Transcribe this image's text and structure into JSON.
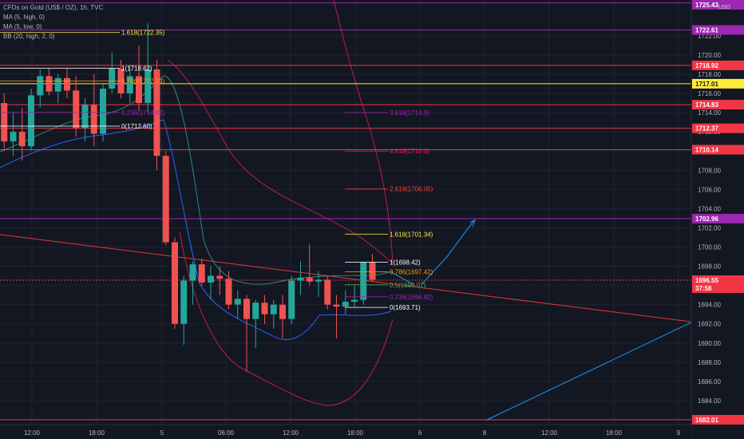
{
  "legend": {
    "title": "CFDs on Gold (US$ / OZ), 1h, TVC",
    "ma_high": "MA (5, high, 0)",
    "ma_low": "MA (5, low, 0)",
    "bb": "BB (20, high, 2, 0)"
  },
  "currency": "USD",
  "countdown": "37:58",
  "colors": {
    "background": "#131722",
    "up": "#26a69a",
    "down": "#ef5350",
    "horizontal_level": "#f23645",
    "purple_level": "#9c27b0",
    "yellow_level": "#ffeb3b",
    "ma_high": "#2a8c84",
    "ma_low": "#2962ff",
    "bollinger": "#c2185b",
    "projection": "#2196f3",
    "trendline": "#e53935"
  },
  "chart_data": {
    "type": "candlestick",
    "symbol": "XAUUSD",
    "timeframe": "1h",
    "ylim": [
      1681.5,
      1725.4
    ],
    "y_ticks": [
      1684,
      1686,
      1688,
      1690,
      1692,
      1694,
      1696,
      1698,
      1700,
      1702,
      1704,
      1706,
      1708,
      1710,
      1712,
      1714,
      1716,
      1718,
      1720,
      1722
    ],
    "x_tick_labels": [
      "12:00",
      "18:00",
      "5",
      "06:00",
      "12:00",
      "18:00",
      "6",
      "8",
      "12:00",
      "18:00",
      "9"
    ],
    "candles": [
      [
        1713.2,
        1716.1,
        1710.0,
        1715.0
      ],
      [
        1715.0,
        1716.0,
        1710.0,
        1711.0
      ],
      [
        1711.0,
        1714.0,
        1709.5,
        1712.0
      ],
      [
        1712.0,
        1714.5,
        1709.0,
        1710.5
      ],
      [
        1710.5,
        1716.5,
        1710.0,
        1715.8
      ],
      [
        1715.8,
        1718.5,
        1714.5,
        1717.8
      ],
      [
        1717.8,
        1718.6,
        1715.8,
        1716.2
      ],
      [
        1716.2,
        1718.0,
        1715.0,
        1717.6
      ],
      [
        1717.6,
        1718.6,
        1715.5,
        1716.3
      ],
      [
        1716.3,
        1717.8,
        1711.5,
        1712.4
      ],
      [
        1712.4,
        1715.5,
        1711.0,
        1714.8
      ],
      [
        1714.8,
        1718.0,
        1710.5,
        1711.8
      ],
      [
        1711.8,
        1717.0,
        1711.0,
        1716.5
      ],
      [
        1716.5,
        1720.3,
        1716.0,
        1718.6
      ],
      [
        1718.6,
        1719.5,
        1715.5,
        1716.0
      ],
      [
        1716.0,
        1719.0,
        1715.0,
        1717.8
      ],
      [
        1717.8,
        1721.0,
        1714.2,
        1715.0
      ],
      [
        1715.0,
        1723.3,
        1714.0,
        1718.5
      ],
      [
        1718.5,
        1719.5,
        1708.0,
        1709.5
      ],
      [
        1709.5,
        1710.0,
        1700.2,
        1700.5
      ],
      [
        1700.5,
        1701.0,
        1691.5,
        1692.0
      ],
      [
        1692.0,
        1697.0,
        1689.8,
        1696.5
      ],
      [
        1696.5,
        1698.5,
        1694.0,
        1698.2
      ],
      [
        1698.2,
        1698.8,
        1696.0,
        1696.3
      ],
      [
        1696.3,
        1698.0,
        1694.5,
        1697.0
      ],
      [
        1697.0,
        1698.0,
        1695.0,
        1696.7
      ],
      [
        1696.7,
        1697.5,
        1693.5,
        1694.0
      ],
      [
        1694.0,
        1695.5,
        1692.5,
        1694.6
      ],
      [
        1694.6,
        1695.0,
        1687.0,
        1692.5
      ],
      [
        1692.5,
        1694.5,
        1689.5,
        1694.2
      ],
      [
        1694.2,
        1695.0,
        1692.0,
        1693.0
      ],
      [
        1693.0,
        1694.5,
        1691.5,
        1694.0
      ],
      [
        1694.0,
        1695.0,
        1690.5,
        1692.5
      ],
      [
        1692.5,
        1697.0,
        1692.0,
        1696.5
      ],
      [
        1696.5,
        1698.5,
        1695.0,
        1696.8
      ],
      [
        1696.8,
        1700.3,
        1696.0,
        1696.4
      ],
      [
        1696.4,
        1697.5,
        1694.8,
        1696.6
      ],
      [
        1696.6,
        1697.0,
        1693.5,
        1694.0
      ],
      [
        1694.0,
        1695.0,
        1690.5,
        1693.8
      ],
      [
        1693.8,
        1695.5,
        1693.0,
        1694.3
      ],
      [
        1694.3,
        1696.0,
        1693.8,
        1694.5
      ],
      [
        1694.5,
        1698.5,
        1694.0,
        1698.4
      ],
      [
        1698.4,
        1699.3,
        1696.4,
        1696.6
      ]
    ],
    "horizontal_levels": [
      {
        "label": "1725.43",
        "color": "purple"
      },
      {
        "label": "1722.61",
        "color": "purple"
      },
      {
        "label": "1718.92",
        "color": "red"
      },
      {
        "label": "1717.01",
        "color": "yellow"
      },
      {
        "label": "1714.83",
        "color": "red"
      },
      {
        "label": "1712.37",
        "color": "red"
      },
      {
        "label": "1710.14",
        "color": "red"
      },
      {
        "label": "1702.96",
        "color": "purple"
      },
      {
        "label": "1696.55",
        "color": "red",
        "current_price": true
      },
      {
        "label": "1682.01",
        "color": "red"
      }
    ],
    "fib_sets": [
      {
        "levels": [
          {
            "ratio": "1.618",
            "price": "1722.35"
          },
          {
            "ratio": "1",
            "price": "1718.62"
          },
          {
            "ratio": "0.786",
            "price": "1717.29"
          },
          {
            "ratio": "0.236",
            "price": "1714.02"
          },
          {
            "ratio": "0",
            "price": "1712.60"
          }
        ]
      },
      {
        "levels": [
          {
            "ratio": "3.618",
            "price": "1714.0"
          },
          {
            "ratio": "4.618",
            "price": "1710.0"
          },
          {
            "ratio": "2.618",
            "price": "1706.05"
          },
          {
            "ratio": "1.618",
            "price": "1701.34"
          },
          {
            "ratio": "1",
            "price": "1698.42"
          },
          {
            "ratio": "0.786",
            "price": "1697.42"
          },
          {
            "ratio": "0.5",
            "price": "1696.07"
          },
          {
            "ratio": "0.236",
            "price": "1694.82"
          },
          {
            "ratio": "0",
            "price": "1693.71"
          }
        ]
      }
    ]
  }
}
